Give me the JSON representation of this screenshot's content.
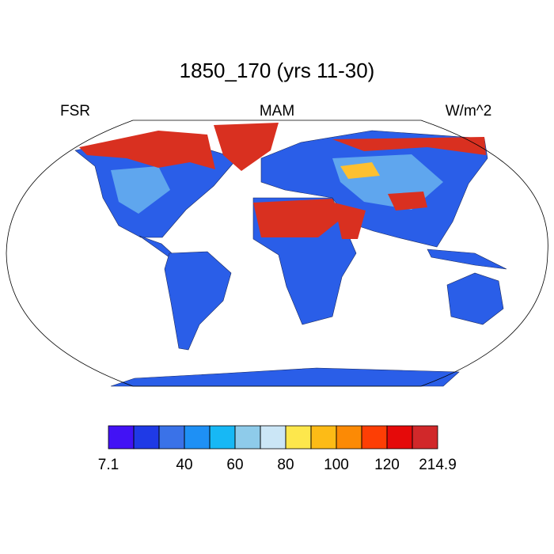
{
  "title": "1850_170 (yrs 11-30)",
  "header": {
    "left": "FSR",
    "center": "MAM",
    "right": "W/m^2"
  },
  "colorbar": {
    "colors": [
      "#4212f5",
      "#1f3ae6",
      "#3a72e8",
      "#1e90f5",
      "#17b8f5",
      "#8ecbea",
      "#cbe6f6",
      "#fde74c",
      "#fdbb16",
      "#fc8a05",
      "#fd3e05",
      "#e50a0a",
      "#d1282a"
    ],
    "min": 7.1,
    "levels": [
      20,
      30,
      40,
      50,
      60,
      70,
      80,
      90,
      100,
      110,
      120,
      130
    ],
    "max": 214.9,
    "ticks": [
      40,
      60,
      80,
      100,
      120
    ]
  }
}
